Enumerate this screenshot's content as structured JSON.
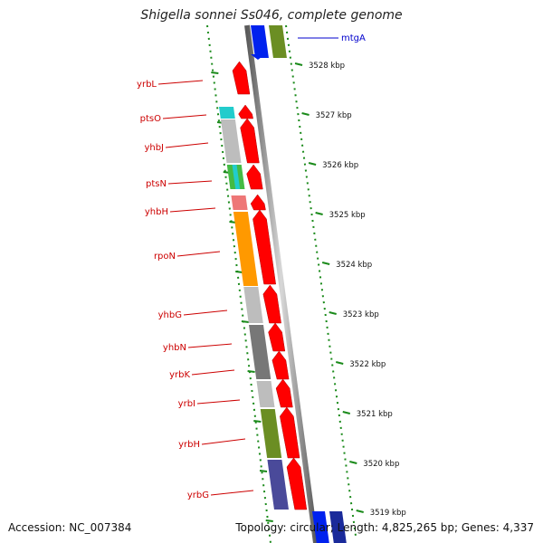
{
  "title": "Shigella sonnei Ss046, complete genome",
  "accession": "Accession: NC_007384",
  "topology": "Topology: circular; Length: 4,825,265 bp; Genes: 4,337",
  "colors": {
    "gene_label": "#cc0000",
    "mtgA_label": "#0000cc",
    "backbone": "#808080",
    "tick": "#1a8a1a"
  },
  "kbp_ticks": [
    "3528 kbp",
    "3527 kbp",
    "3526 kbp",
    "3525 kbp",
    "3524 kbp",
    "3523 kbp",
    "3522 kbp",
    "3521 kbp",
    "3520 kbp",
    "3519 kbp"
  ],
  "genes": [
    {
      "name": "mtgA",
      "strand": "reverse"
    },
    {
      "name": "yrbL",
      "strand": "forward"
    },
    {
      "name": "ptsO",
      "strand": "forward"
    },
    {
      "name": "yhbJ",
      "strand": "forward"
    },
    {
      "name": "ptsN",
      "strand": "forward"
    },
    {
      "name": "yhbH",
      "strand": "forward"
    },
    {
      "name": "rpoN",
      "strand": "forward"
    },
    {
      "name": "yhbG",
      "strand": "forward"
    },
    {
      "name": "yhbN",
      "strand": "forward"
    },
    {
      "name": "yrbK",
      "strand": "forward"
    },
    {
      "name": "yrbI",
      "strand": "forward"
    },
    {
      "name": "yrbH",
      "strand": "forward"
    },
    {
      "name": "yrbG",
      "strand": "forward"
    }
  ]
}
